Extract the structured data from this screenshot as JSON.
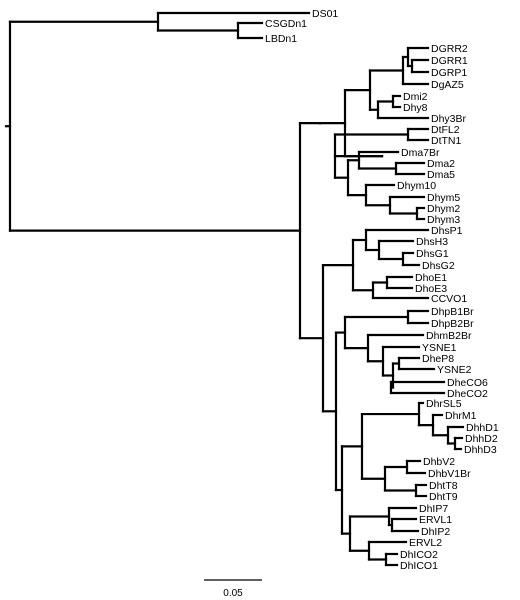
{
  "tree": {
    "leaves": [
      "DS01",
      "CSGDn1",
      "LBDn1",
      "DGRR2",
      "DGRR1",
      "DGRP1",
      "DgAZ5",
      "Dmi2",
      "Dhy8",
      "Dhy3Br",
      "DtFL2",
      "DtTN1",
      "Dma7Br",
      "Dma2",
      "Dma5",
      "Dhym10",
      "Dhym5",
      "Dhym2",
      "Dhym3",
      "DhsP1",
      "DhsH3",
      "DhsG1",
      "DhsG2",
      "DhoE1",
      "DhoE3",
      "CCVO1",
      "DhpB1Br",
      "DhpB2Br",
      "DhmB2Br",
      "YSNE1",
      "DheP8",
      "YSNE2",
      "DheCO6",
      "DheCO2",
      "DhrSL5",
      "DhrM1",
      "DhhD1",
      "DhhD2",
      "DhhD3",
      "DhbV2",
      "DhbV1Br",
      "DhtT8",
      "DhtT9",
      "DhIP7",
      "ERVL1",
      "DhIP2",
      "ERVL2",
      "DhICO2",
      "DhICO1"
    ],
    "scale_bar": {
      "label": "0.05"
    }
  }
}
